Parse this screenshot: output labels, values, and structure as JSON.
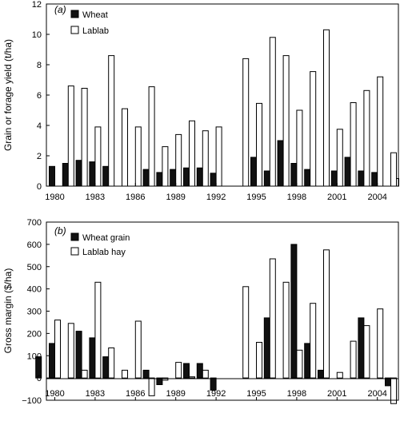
{
  "chart_data": [
    {
      "type": "bar",
      "panel_label": "(a)",
      "ylabel": "Grain or forage yield (t/ha)",
      "ylim": [
        0,
        12
      ],
      "yticks": [
        0,
        2,
        4,
        6,
        8,
        10,
        12
      ],
      "x_tick_labels": [
        "1980",
        "1983",
        "1986",
        "1989",
        "1992",
        "1995",
        "1998",
        "2001",
        "2004"
      ],
      "years": [
        1980,
        1981,
        1982,
        1983,
        1984,
        1985,
        1986,
        1987,
        1988,
        1989,
        1990,
        1991,
        1992,
        1993,
        1994,
        1995,
        1996,
        1997,
        1998,
        1999,
        2000,
        2001,
        2002,
        2003,
        2004,
        2005
      ],
      "legend_position": "top-left",
      "series": [
        {
          "name": "Wheat",
          "fill": "#111111",
          "values": [
            1.3,
            1.5,
            1.7,
            1.6,
            1.3,
            0,
            0,
            1.1,
            0.9,
            1.1,
            1.2,
            1.2,
            0.85,
            0,
            0,
            1.9,
            1.0,
            3.0,
            1.5,
            1.1,
            0,
            1.0,
            1.9,
            1.0,
            0.9,
            0
          ]
        },
        {
          "name": "Lablab",
          "fill": "#ffffff",
          "values": [
            0,
            6.6,
            6.45,
            3.9,
            8.6,
            5.1,
            3.9,
            6.55,
            2.6,
            3.4,
            4.3,
            3.65,
            3.9,
            0,
            8.4,
            5.45,
            9.8,
            8.6,
            5.0,
            7.55,
            10.3,
            3.75,
            5.5,
            6.3,
            7.2,
            2.2
          ]
        }
      ],
      "extra_bar": {
        "year": 2005,
        "value": 0.5
      }
    },
    {
      "type": "bar",
      "panel_label": "(b)",
      "ylabel": "Gross margin ($/ha)",
      "ylim": [
        -100,
        700
      ],
      "yticks": [
        -100,
        0,
        100,
        200,
        300,
        400,
        500,
        600,
        700
      ],
      "x_tick_labels": [
        "1980",
        "1983",
        "1986",
        "1989",
        "1992",
        "1995",
        "1998",
        "2001",
        "2004"
      ],
      "years": [
        1979,
        1980,
        1981,
        1982,
        1983,
        1984,
        1985,
        1986,
        1987,
        1988,
        1989,
        1990,
        1991,
        1992,
        1993,
        1994,
        1995,
        1996,
        1997,
        1998,
        1999,
        2000,
        2001,
        2002,
        2003,
        2004,
        2005
      ],
      "legend_position": "top-left",
      "series": [
        {
          "name": "Wheat grain",
          "fill": "#111111",
          "values": [
            95,
            155,
            0,
            210,
            180,
            95,
            0,
            0,
            35,
            -30,
            0,
            65,
            65,
            -55,
            0,
            0,
            0,
            270,
            0,
            600,
            155,
            35,
            0,
            0,
            270,
            0,
            -35
          ]
        },
        {
          "name": "Lablab hay",
          "fill": "#ffffff",
          "values": [
            0,
            260,
            245,
            35,
            430,
            135,
            35,
            255,
            -80,
            -10,
            70,
            5,
            35,
            0,
            0,
            410,
            160,
            535,
            430,
            125,
            335,
            575,
            25,
            165,
            235,
            310,
            -115
          ]
        }
      ]
    }
  ]
}
